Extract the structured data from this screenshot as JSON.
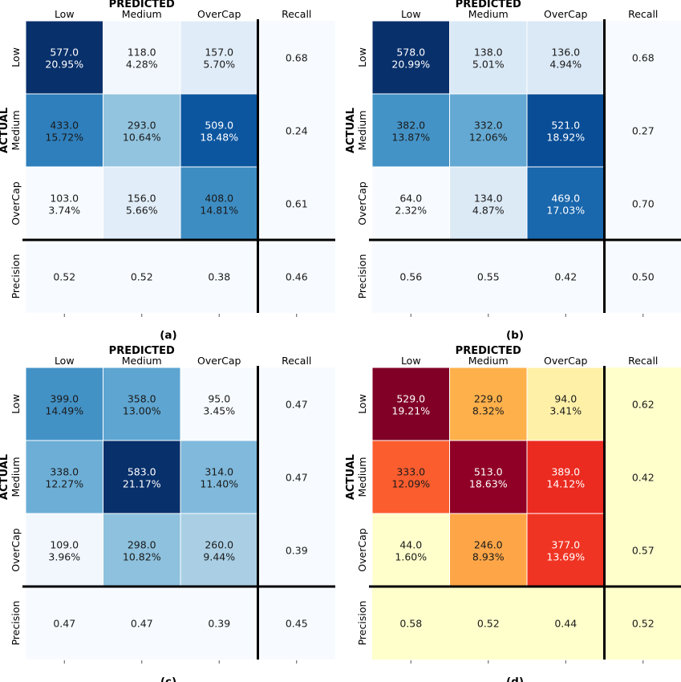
{
  "chart_data": [
    {
      "type": "heatmap",
      "caption": "(a)",
      "title": "PREDICTED",
      "ylabel": "ACTUAL",
      "columns": [
        "Low",
        "Medium",
        "OverCap",
        "Recall"
      ],
      "rows": [
        "Low",
        "Medium",
        "OverCap",
        "Precision"
      ],
      "colormap": "blues",
      "matrix": [
        [
          577,
          118,
          157
        ],
        [
          433,
          293,
          509
        ],
        [
          103,
          156,
          408
        ]
      ],
      "percent": [
        [
          "20.95%",
          "4.28%",
          "5.70%"
        ],
        [
          "15.72%",
          "10.64%",
          "18.48%"
        ],
        [
          "3.74%",
          "5.66%",
          "14.81%"
        ]
      ],
      "recall": [
        "0.68",
        "0.24",
        "0.61"
      ],
      "precision": [
        "0.52",
        "0.52",
        "0.38"
      ],
      "overall": "0.46"
    },
    {
      "type": "heatmap",
      "caption": "(b)",
      "title": "PREDICTED",
      "ylabel": "ACTUAL",
      "columns": [
        "Low",
        "Medium",
        "OverCap",
        "Recall"
      ],
      "rows": [
        "Low",
        "Medium",
        "OverCap",
        "Precision"
      ],
      "colormap": "blues",
      "matrix": [
        [
          578,
          138,
          136
        ],
        [
          382,
          332,
          521
        ],
        [
          64,
          134,
          469
        ]
      ],
      "percent": [
        [
          "20.99%",
          "5.01%",
          "4.94%"
        ],
        [
          "13.87%",
          "12.06%",
          "18.92%"
        ],
        [
          "2.32%",
          "4.87%",
          "17.03%"
        ]
      ],
      "recall": [
        "0.68",
        "0.27",
        "0.70"
      ],
      "precision": [
        "0.56",
        "0.55",
        "0.42"
      ],
      "overall": "0.50"
    },
    {
      "type": "heatmap",
      "caption": "(c)",
      "title": "PREDICTED",
      "ylabel": "ACTUAL",
      "columns": [
        "Low",
        "Medium",
        "OverCap",
        "Recall"
      ],
      "rows": [
        "Low",
        "Medium",
        "OverCap",
        "Precision"
      ],
      "colormap": "blues",
      "matrix": [
        [
          399,
          358,
          95
        ],
        [
          338,
          583,
          314
        ],
        [
          109,
          298,
          260
        ]
      ],
      "percent": [
        [
          "14.49%",
          "13.00%",
          "3.45%"
        ],
        [
          "12.27%",
          "21.17%",
          "11.40%"
        ],
        [
          "3.96%",
          "10.82%",
          "9.44%"
        ]
      ],
      "recall": [
        "0.47",
        "0.47",
        "0.39"
      ],
      "precision": [
        "0.47",
        "0.47",
        "0.39"
      ],
      "overall": "0.45"
    },
    {
      "type": "heatmap",
      "caption": "(d)",
      "title": "PREDICTED",
      "ylabel": "ACTUAL",
      "columns": [
        "Low",
        "Medium",
        "OverCap",
        "Recall"
      ],
      "rows": [
        "Low",
        "Medium",
        "OverCap",
        "Precision"
      ],
      "colormap": "ylorrd",
      "matrix": [
        [
          529,
          229,
          94
        ],
        [
          333,
          513,
          389
        ],
        [
          44,
          246,
          377
        ]
      ],
      "percent": [
        [
          "19.21%",
          "8.32%",
          "3.41%"
        ],
        [
          "12.09%",
          "18.63%",
          "14.12%"
        ],
        [
          "1.60%",
          "8.93%",
          "13.69%"
        ]
      ],
      "recall": [
        "0.62",
        "0.42",
        "0.57"
      ],
      "precision": [
        "0.58",
        "0.52",
        "0.44"
      ],
      "overall": "0.52"
    }
  ]
}
